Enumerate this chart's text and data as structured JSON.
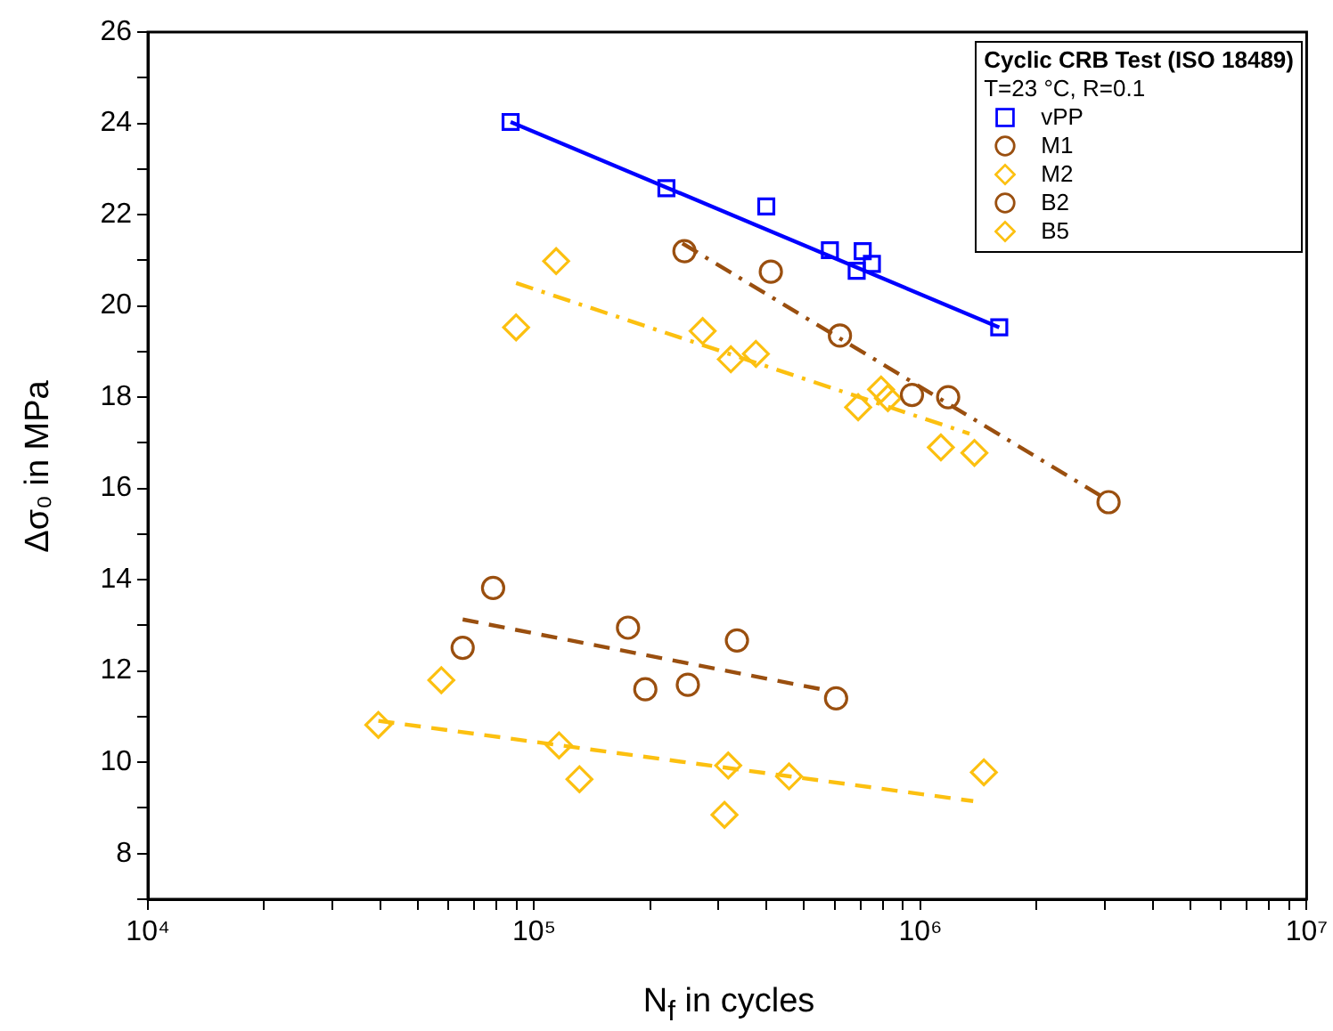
{
  "chart_data": {
    "type": "scatter",
    "xlabel": "N$_{f}$ in cycles",
    "ylabel": "Δσ₀ in MPa",
    "legend_title": "Cyclic CRB Test (ISO 18489)",
    "annotations": [
      "T=23 °C, R=0.1"
    ],
    "log": "x",
    "grid": false,
    "legend": "top right",
    "xlim": [
      10000,
      10000000
    ],
    "xticks": [
      {
        "value": 10000,
        "label": "10⁴"
      },
      {
        "value": 20000,
        "label": null
      },
      {
        "value": 30000,
        "label": null
      },
      {
        "value": 40000,
        "label": null
      },
      {
        "value": 50000,
        "label": null
      },
      {
        "value": 60000,
        "label": null
      },
      {
        "value": 70000,
        "label": null
      },
      {
        "value": 80000,
        "label": null
      },
      {
        "value": 90000,
        "label": null
      },
      {
        "value": 100000,
        "label": "10⁵"
      },
      {
        "value": 200000,
        "label": null
      },
      {
        "value": 300000,
        "label": null
      },
      {
        "value": 400000,
        "label": null
      },
      {
        "value": 500000,
        "label": null
      },
      {
        "value": 600000,
        "label": null
      },
      {
        "value": 700000,
        "label": null
      },
      {
        "value": 800000,
        "label": null
      },
      {
        "value": 900000,
        "label": null
      },
      {
        "value": 1000000,
        "label": "10⁶"
      },
      {
        "value": 2000000,
        "label": null
      },
      {
        "value": 3000000,
        "label": null
      },
      {
        "value": 4000000,
        "label": null
      },
      {
        "value": 5000000,
        "label": null
      },
      {
        "value": 6000000,
        "label": null
      },
      {
        "value": 7000000,
        "label": null
      },
      {
        "value": 8000000,
        "label": null
      },
      {
        "value": 9000000,
        "label": null
      },
      {
        "value": 10000000,
        "label": "10⁷"
      }
    ],
    "ylim": [
      7,
      26
    ],
    "yticks": [
      {
        "value": 7,
        "label": null
      },
      8,
      {
        "value": 9,
        "label": null
      },
      10,
      {
        "value": 11,
        "label": null
      },
      12,
      {
        "value": 13,
        "label": null
      },
      14,
      {
        "value": 15,
        "label": null
      },
      16,
      {
        "value": 17,
        "label": null
      },
      18,
      {
        "value": 19,
        "label": null
      },
      20,
      {
        "value": 21,
        "label": null
      },
      22,
      {
        "value": 23,
        "label": null
      },
      24,
      {
        "value": 25,
        "label": null
      },
      26
    ],
    "series": [
      {
        "name": "vPP",
        "type": "scatter",
        "marker": "square",
        "color": "#0000ff",
        "x": [
          86900,
          220000,
          399000,
          583000,
          709000,
          684000,
          749000,
          1600000
        ],
        "values": [
          24.03,
          22.58,
          22.18,
          21.22,
          21.2,
          20.77,
          20.92,
          19.53
        ]
      },
      {
        "name": "M1",
        "type": "scatter",
        "marker": "circle",
        "color": "#9a4f0f",
        "x": [
          245000,
          410000,
          619000,
          951000,
          1180000,
          3070000
        ],
        "values": [
          21.2,
          20.75,
          19.35,
          18.05,
          18.0,
          15.7
        ]
      },
      {
        "name": "M2",
        "type": "scatter",
        "marker": "diamond",
        "color": "#fcc010",
        "x": [
          114000,
          89800,
          273000,
          323000,
          375000,
          791000,
          824000,
          690000,
          1130000,
          1380000
        ],
        "values": [
          20.98,
          19.53,
          19.45,
          18.83,
          18.95,
          18.17,
          17.98,
          17.78,
          16.9,
          16.78
        ]
      },
      {
        "name": "B2",
        "type": "scatter",
        "marker": "circle",
        "color": "#9a4f0f",
        "x": [
          78300,
          65300,
          175000,
          194000,
          250000,
          335000,
          605000
        ],
        "values": [
          13.82,
          12.51,
          12.95,
          11.6,
          11.7,
          12.67,
          11.4
        ]
      },
      {
        "name": "B5",
        "type": "scatter",
        "marker": "diamond",
        "color": "#fcc010",
        "x": [
          39500,
          57500,
          116000,
          131000,
          318000,
          311000,
          457000,
          1460000
        ],
        "values": [
          10.82,
          11.8,
          10.37,
          9.63,
          9.93,
          8.85,
          9.69,
          9.78
        ]
      },
      {
        "type": "line",
        "line_style": "solid",
        "color": "#0000ff",
        "x": [
          86900,
          1600000
        ],
        "values": [
          24.03,
          19.53
        ]
      },
      {
        "type": "line",
        "line_style": "dashdot",
        "color": "#9a4f0f",
        "x": [
          242000,
          3010000
        ],
        "values": [
          21.37,
          15.78
        ]
      },
      {
        "type": "line",
        "line_style": "dashdot",
        "color": "#fcc010",
        "x": [
          89800,
          1340000
        ],
        "values": [
          20.5,
          17.2
        ]
      },
      {
        "type": "line",
        "line_style": "dashed",
        "color": "#9a4f0f",
        "x": [
          65300,
          578000
        ],
        "values": [
          13.13,
          11.57
        ]
      },
      {
        "type": "line",
        "line_style": "dashed",
        "color": "#fcc010",
        "x": [
          39500,
          1370000
        ],
        "values": [
          10.91,
          9.15
        ]
      }
    ]
  }
}
